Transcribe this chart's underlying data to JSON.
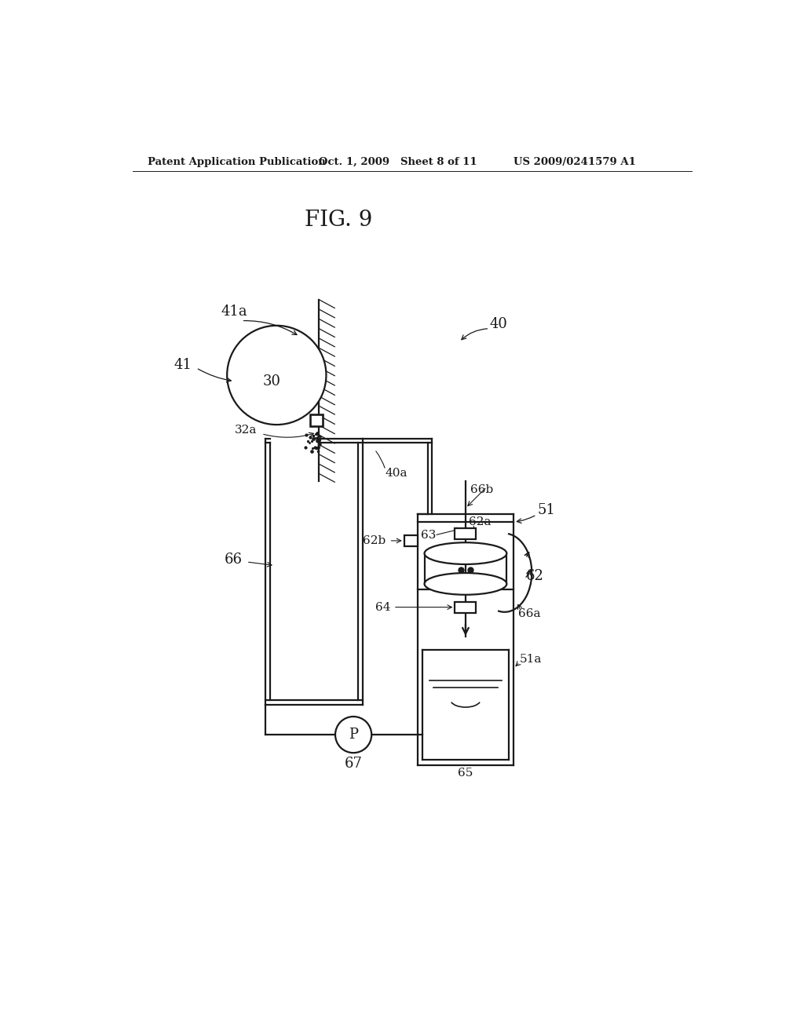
{
  "bg_color": "#ffffff",
  "title": "FIG. 9",
  "header_left": "Patent Application Publication",
  "header_mid": "Oct. 1, 2009   Sheet 8 of 11",
  "header_right": "US 2009/0241579 A1",
  "line_color": "#1a1a1a",
  "lw": 1.6
}
